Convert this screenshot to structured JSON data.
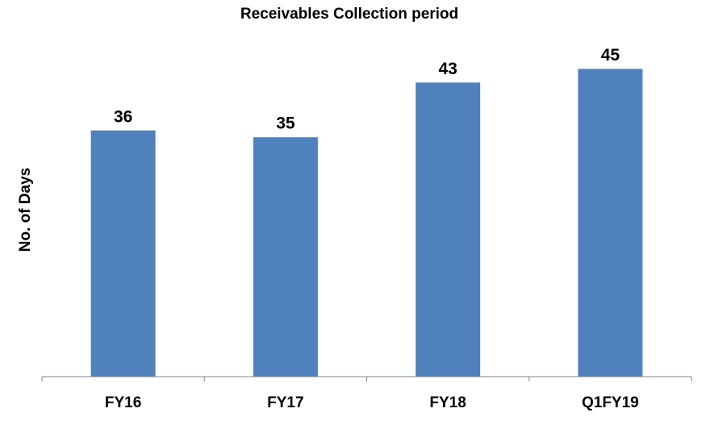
{
  "chart_data": {
    "type": "bar",
    "title": "Receivables Collection  period",
    "y_label": "No. of Days",
    "categories": [
      "FY16",
      "FY17",
      "FY18",
      "Q1FY19"
    ],
    "values": [
      36,
      35,
      43,
      45
    ],
    "color": "#4f81bd",
    "ylim": [
      0,
      50
    ]
  }
}
